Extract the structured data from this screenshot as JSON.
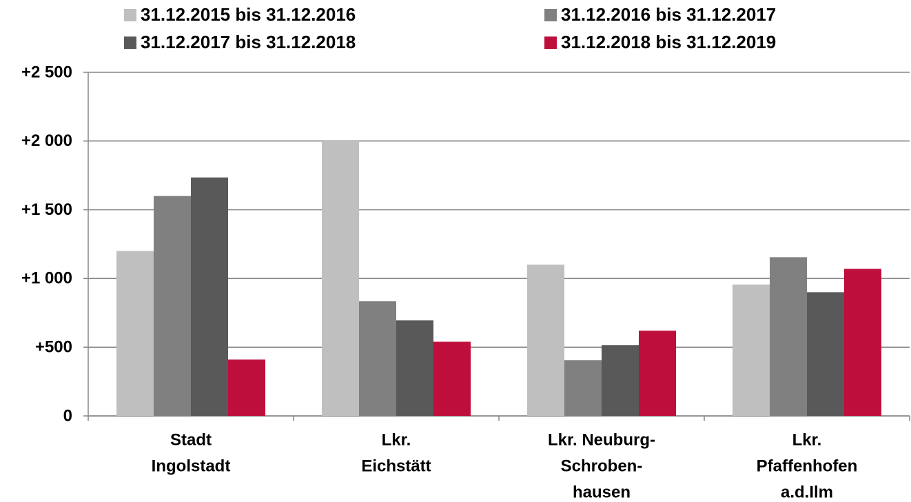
{
  "chart_data": {
    "type": "bar",
    "categories": [
      [
        "Stadt",
        "Ingolstadt"
      ],
      [
        "Lkr.",
        "Eichstätt"
      ],
      [
        "Lkr. Neuburg-",
        "Schroben-",
        "hausen"
      ],
      [
        "Lkr.",
        "Pfaffenhofen",
        "a.d.Ilm"
      ]
    ],
    "series": [
      {
        "name": "31.12.2015 bis 31.12.2016",
        "color": "#bfbfbf",
        "values": [
          1200,
          2000,
          1100,
          955
        ]
      },
      {
        "name": "31.12.2016 bis 31.12.2017",
        "color": "#808080",
        "values": [
          1600,
          835,
          405,
          1155
        ]
      },
      {
        "name": "31.12.2017 bis 31.12.2018",
        "color": "#595959",
        "values": [
          1735,
          695,
          515,
          900
        ]
      },
      {
        "name": "31.12.2018 bis 31.12.2019",
        "color": "#be0f3c",
        "values": [
          410,
          540,
          620,
          1070
        ]
      }
    ],
    "ylim": [
      0,
      2500
    ],
    "yticks": [
      0,
      {
        "value": 500,
        "label": "+500"
      },
      {
        "value": 1000,
        "label": "+1 000"
      },
      {
        "value": 1500,
        "label": "+1 500"
      },
      {
        "value": 2000,
        "label": "+2 000"
      },
      {
        "value": 2500,
        "label": "+2 500"
      }
    ],
    "grid": true,
    "legend": "top"
  }
}
